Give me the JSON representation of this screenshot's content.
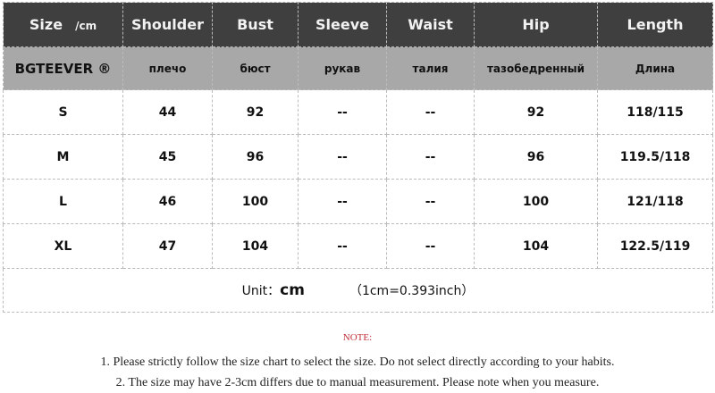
{
  "header": {
    "size": "Size",
    "unit": "/cm",
    "columns": [
      "Shoulder",
      "Bust",
      "Sleeve",
      "Waist",
      "Hip",
      "Length"
    ]
  },
  "subheader": {
    "brand": "BGTEEVER ®",
    "columns": [
      "плечо",
      "бюст",
      "рукав",
      "талия",
      "тазобедренный",
      "Длина"
    ]
  },
  "rows": [
    [
      "S",
      "44",
      "92",
      "--",
      "--",
      "92",
      "118/115"
    ],
    [
      "M",
      "45",
      "96",
      "--",
      "--",
      "96",
      "119.5/118"
    ],
    [
      "L",
      "46",
      "100",
      "--",
      "--",
      "100",
      "121/118"
    ],
    [
      "XL",
      "47",
      "104",
      "--",
      "--",
      "104",
      "122.5/119"
    ]
  ],
  "unit_row": {
    "label": "Unit：",
    "unit": "cm",
    "conversion": "（1cm=0.393inch）"
  },
  "note": {
    "title": "NOTE:",
    "lines": [
      "1. Please strictly follow the size chart to select the size. Do not select directly according to your habits.",
      "2. The size may have 2-3cm differs due to manual measurement. Please note when you measure."
    ]
  }
}
